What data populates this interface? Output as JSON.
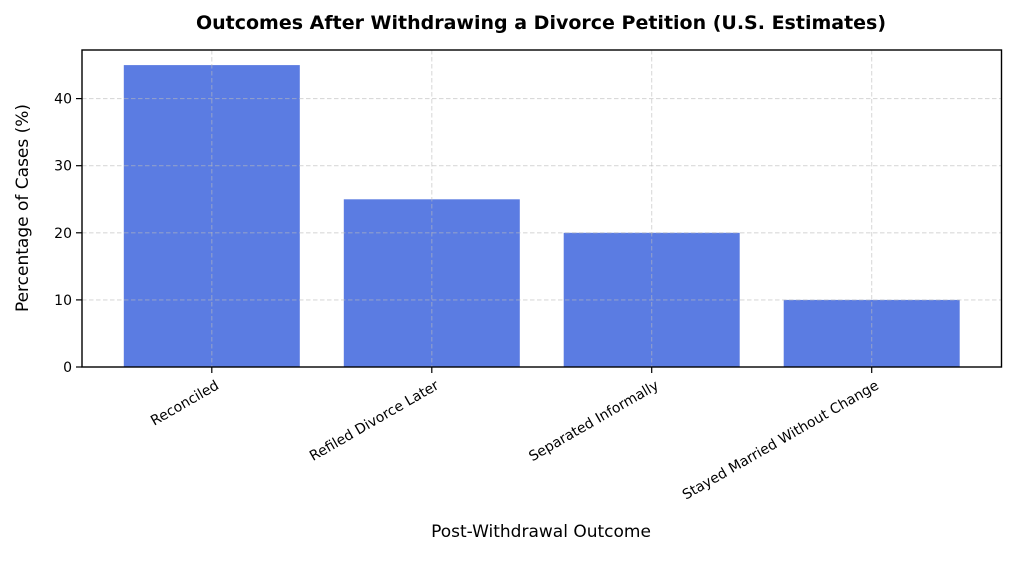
{
  "chart_data": {
    "type": "bar",
    "title": "Outcomes After Withdrawing a Divorce Petition (U.S. Estimates)",
    "xlabel": "Post-Withdrawal Outcome",
    "ylabel": "Percentage of Cases (%)",
    "categories": [
      "Reconciled",
      "Refiled Divorce Later",
      "Separated Informally",
      "Stayed Married Without Change"
    ],
    "values": [
      45,
      25,
      20,
      10
    ],
    "yticks": [
      0,
      10,
      20,
      30,
      40
    ],
    "ylim": [
      0,
      47.25
    ],
    "bar_color": "#5b7ce2",
    "grid": true,
    "grid_color": "#bbbbbb",
    "spine_color": "#000000",
    "tick_label_rotation_deg": 30,
    "background": "#ffffff",
    "legend": "none"
  }
}
